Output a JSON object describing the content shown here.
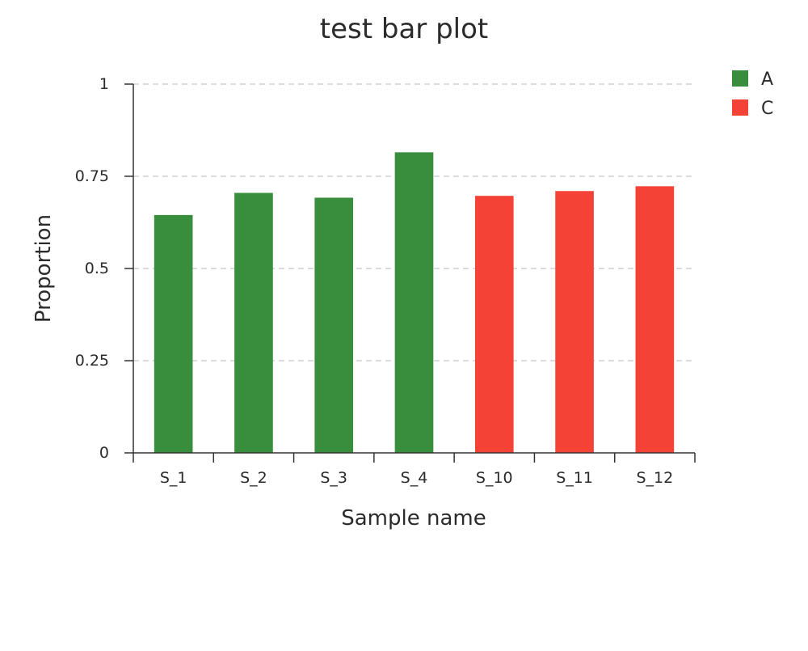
{
  "chart_data": {
    "type": "bar",
    "title": "test bar plot",
    "xlabel": "Sample name",
    "ylabel": "Proportion",
    "categories": [
      "S_1",
      "S_2",
      "S_3",
      "S_4",
      "S_10",
      "S_11",
      "S_12"
    ],
    "values": [
      0.645,
      0.705,
      0.692,
      0.815,
      0.697,
      0.71,
      0.723
    ],
    "groups": [
      "A",
      "A",
      "A",
      "A",
      "C",
      "C",
      "C"
    ],
    "ylim": [
      0,
      1
    ],
    "yticks": [
      0,
      0.25,
      0.5,
      0.75,
      1
    ],
    "ytick_labels": [
      "0",
      "0.25",
      "0.5",
      "0.75",
      "1"
    ],
    "grid": true,
    "legend_position": "top-right",
    "legend": [
      {
        "name": "A",
        "color": "#388e3c"
      },
      {
        "name": "C",
        "color": "#f44336"
      }
    ]
  }
}
